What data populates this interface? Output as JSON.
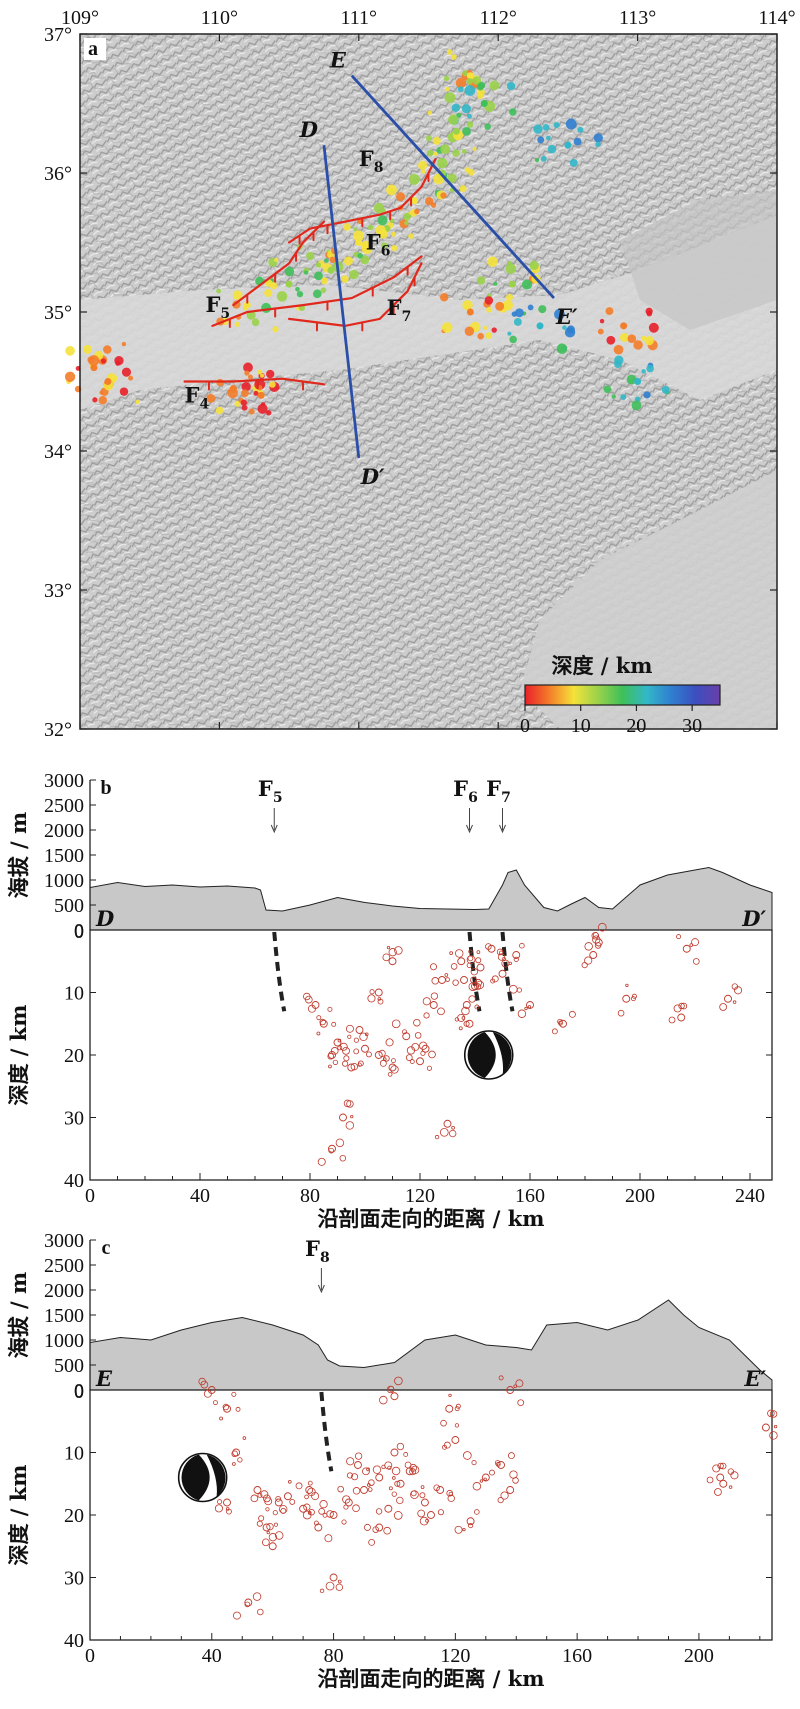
{
  "panels": {
    "a": "a",
    "b": "b",
    "c": "c"
  },
  "map": {
    "lon_ticks": [
      "109°",
      "110°",
      "111°",
      "112°",
      "113°",
      "114°"
    ],
    "lat_ticks": [
      "37°",
      "36°",
      "35°",
      "34°",
      "33°",
      "32°"
    ],
    "lon_range": [
      109,
      114
    ],
    "lat_range": [
      32,
      37
    ],
    "colorbar": {
      "title": "深度 / km",
      "ticks": [
        "0",
        "10",
        "20",
        "30"
      ],
      "range": [
        0,
        35
      ],
      "colors": [
        "#e8202a",
        "#f47d2a",
        "#f5e23a",
        "#9ad24a",
        "#3fbf5a",
        "#32b7c8",
        "#2f7fd0",
        "#3b4fc0",
        "#6a3fa8"
      ]
    },
    "profile_lines": [
      {
        "start": "D",
        "end": "D′",
        "start_lonlat": [
          110.75,
          36.2
        ],
        "end_lonlat": [
          111.0,
          33.95
        ]
      },
      {
        "start": "E",
        "end": "E′",
        "start_lonlat": [
          110.95,
          36.7
        ],
        "end_lonlat": [
          112.4,
          35.1
        ]
      }
    ],
    "fault_labels": [
      {
        "name": "F",
        "sub": "8",
        "lonlat": [
          111.0,
          36.05
        ]
      },
      {
        "name": "F",
        "sub": "6",
        "lonlat": [
          111.05,
          35.45
        ]
      },
      {
        "name": "F",
        "sub": "5",
        "lonlat": [
          109.9,
          35.0
        ]
      },
      {
        "name": "F",
        "sub": "7",
        "lonlat": [
          111.2,
          34.98
        ]
      },
      {
        "name": "F",
        "sub": "4",
        "lonlat": [
          109.75,
          34.35
        ]
      }
    ],
    "colors": {
      "profile": "#2b4fa8",
      "fault": "#e0281c",
      "terrain": "#c9c9c9"
    }
  },
  "profile_b": {
    "elev_ylabel": "海拔 / m",
    "elev_ticks": [
      "3000",
      "2500",
      "2000",
      "1500",
      "1000",
      "500",
      "0"
    ],
    "depth_ylabel": "深度 / km",
    "depth_ticks": [
      "0",
      "10",
      "20",
      "30",
      "40"
    ],
    "xlabel": "沿剖面走向的距离 / km",
    "x_ticks": [
      "0",
      "40",
      "80",
      "120",
      "160",
      "200",
      "240"
    ],
    "x_range": [
      0,
      248
    ],
    "start_label": "D",
    "end_label": "D′",
    "fault_markers": [
      {
        "name": "F",
        "sub": "5",
        "x": 67
      },
      {
        "name": "F",
        "sub": "6",
        "x": 138
      },
      {
        "name": "F",
        "sub": "7",
        "x": 150
      }
    ]
  },
  "profile_c": {
    "elev_ylabel": "海拔 / m",
    "elev_ticks": [
      "3000",
      "2500",
      "2000",
      "1500",
      "1000",
      "500",
      "0"
    ],
    "depth_ylabel": "深度 / km",
    "depth_ticks": [
      "0",
      "10",
      "20",
      "30",
      "40"
    ],
    "xlabel": "沿剖面走向的距离 / km",
    "x_ticks": [
      "0",
      "40",
      "80",
      "120",
      "160",
      "200"
    ],
    "x_range": [
      0,
      224
    ],
    "start_label": "E",
    "end_label": "E′",
    "fault_markers": [
      {
        "name": "F",
        "sub": "8",
        "x": 76
      }
    ]
  },
  "chart_data": [
    {
      "type": "scatter",
      "title": "",
      "xlabel": "",
      "ylabel": "",
      "xlim": [
        109,
        114
      ],
      "ylim": [
        32,
        37
      ],
      "note": "epicenters colored by depth (km)",
      "series": [
        {
          "name": "earthquakes",
          "points": [
            [
              111.8,
              36.7,
              10
            ],
            [
              111.9,
              36.5,
              18
            ],
            [
              111.7,
              36.3,
              14
            ],
            [
              111.6,
              36.0,
              12
            ],
            [
              111.4,
              35.8,
              8
            ],
            [
              111.2,
              35.6,
              12
            ],
            [
              111.0,
              35.5,
              10
            ],
            [
              110.8,
              35.3,
              13
            ],
            [
              110.5,
              35.2,
              15
            ],
            [
              110.2,
              35.05,
              9
            ],
            [
              109.1,
              34.6,
              6
            ],
            [
              109.2,
              34.5,
              5
            ],
            [
              110.1,
              34.45,
              4
            ],
            [
              110.3,
              34.4,
              3
            ],
            [
              112.1,
              35.2,
              11
            ],
            [
              112.3,
              34.9,
              22
            ],
            [
              112.9,
              34.9,
              3
            ],
            [
              113.0,
              34.5,
              20
            ],
            [
              111.8,
              35.0,
              6
            ],
            [
              112.5,
              36.2,
              24
            ]
          ]
        }
      ]
    },
    {
      "type": "scatter",
      "title": "",
      "xlabel": "沿剖面走向的距离 / km",
      "ylabel": "深度 / km",
      "xlim": [
        0,
        248
      ],
      "ylim": [
        40,
        0
      ],
      "elevation_profile": {
        "x": [
          0,
          10,
          20,
          30,
          40,
          50,
          60,
          62,
          64,
          70,
          80,
          90,
          100,
          110,
          120,
          130,
          140,
          145,
          150,
          152,
          155,
          158,
          165,
          170,
          175,
          180,
          185,
          190,
          200,
          210,
          220,
          225,
          230,
          240,
          248
        ],
        "y": [
          850,
          950,
          870,
          900,
          860,
          880,
          840,
          800,
          400,
          380,
          500,
          650,
          550,
          480,
          430,
          420,
          410,
          420,
          900,
          1150,
          1200,
          900,
          450,
          380,
          520,
          650,
          450,
          420,
          900,
          1100,
          1200,
          1250,
          1150,
          900,
          750
        ]
      },
      "series": [
        {
          "name": "earthquakes",
          "points": [
            [
              82,
              12
            ],
            [
              85,
              15
            ],
            [
              88,
              20
            ],
            [
              90,
              18
            ],
            [
              95,
              22
            ],
            [
              98,
              16
            ],
            [
              100,
              19
            ],
            [
              105,
              20
            ],
            [
              110,
              22
            ],
            [
              115,
              17
            ],
            [
              120,
              21
            ],
            [
              122,
              19
            ],
            [
              125,
              12
            ],
            [
              128,
              8
            ],
            [
              135,
              5
            ],
            [
              136,
              8
            ],
            [
              137,
              12
            ],
            [
              138,
              15
            ],
            [
              140,
              9
            ],
            [
              142,
              6
            ],
            [
              146,
              3
            ],
            [
              150,
              7
            ],
            [
              155,
              4
            ],
            [
              160,
              12
            ],
            [
              172,
              15
            ],
            [
              183,
              4
            ],
            [
              185,
              2
            ],
            [
              195,
              11
            ],
            [
              217,
              3
            ],
            [
              215,
              14
            ],
            [
              232,
              11
            ],
            [
              92,
              30
            ],
            [
              88,
              35
            ],
            [
              130,
              31
            ],
            [
              105,
              10
            ],
            [
              110,
              5
            ]
          ]
        },
        {
          "name": "focal_mechanism",
          "points": [
            [
              145,
              20
            ]
          ]
        }
      ]
    },
    {
      "type": "scatter",
      "title": "",
      "xlabel": "沿剖面走向的距离 / km",
      "ylabel": "深度 / km",
      "xlim": [
        0,
        224
      ],
      "ylim": [
        40,
        0
      ],
      "elevation_profile": {
        "x": [
          0,
          10,
          20,
          30,
          40,
          50,
          60,
          65,
          70,
          75,
          78,
          82,
          90,
          100,
          110,
          120,
          130,
          140,
          145,
          150,
          160,
          170,
          180,
          190,
          195,
          200,
          210,
          215,
          220,
          224
        ],
        "y": [
          950,
          1050,
          1000,
          1200,
          1350,
          1450,
          1300,
          1200,
          1100,
          900,
          600,
          480,
          450,
          550,
          1000,
          1100,
          900,
          850,
          800,
          1300,
          1350,
          1200,
          1400,
          1800,
          1500,
          1250,
          1000,
          700,
          400,
          200
        ]
      },
      "series": [
        {
          "name": "earthquakes",
          "points": [
            [
              40,
              0
            ],
            [
              45,
              3
            ],
            [
              48,
              10
            ],
            [
              55,
              16
            ],
            [
              58,
              22
            ],
            [
              62,
              18
            ],
            [
              65,
              17
            ],
            [
              70,
              19
            ],
            [
              72,
              16
            ],
            [
              75,
              22
            ],
            [
              80,
              20
            ],
            [
              85,
              18
            ],
            [
              88,
              12
            ],
            [
              90,
              16
            ],
            [
              95,
              14
            ],
            [
              98,
              19
            ],
            [
              100,
              10
            ],
            [
              102,
              15
            ],
            [
              105,
              13
            ],
            [
              110,
              18
            ],
            [
              115,
              16
            ],
            [
              120,
              8
            ],
            [
              125,
              21
            ],
            [
              130,
              14
            ],
            [
              135,
              12
            ],
            [
              138,
              16
            ],
            [
              100,
              1
            ],
            [
              118,
              3
            ],
            [
              138,
              0
            ],
            [
              207,
              14
            ],
            [
              208,
              15
            ],
            [
              222,
              6
            ],
            [
              52,
              34
            ],
            [
              80,
              30
            ],
            [
              45,
              18
            ],
            [
              60,
              25
            ],
            [
              112,
              20
            ],
            [
              95,
              22
            ]
          ]
        },
        {
          "name": "focal_mechanism",
          "points": [
            [
              37,
              14
            ]
          ]
        }
      ]
    }
  ]
}
